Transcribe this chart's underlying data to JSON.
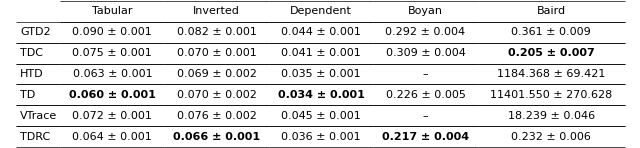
{
  "columns": [
    "Tabular",
    "Inverted",
    "Dependent",
    "Boyan",
    "Baird"
  ],
  "rows": [
    "GTD2",
    "TDC",
    "HTD",
    "TD",
    "VTrace",
    "TDRC"
  ],
  "cells": [
    [
      "0.090 ± 0.001",
      "0.082 ± 0.001",
      "0.044 ± 0.001",
      "0.292 ± 0.004",
      "0.361 ± 0.009"
    ],
    [
      "0.075 ± 0.001",
      "0.070 ± 0.001",
      "0.041 ± 0.001",
      "0.309 ± 0.004",
      "0.205 ± 0.007"
    ],
    [
      "0.063 ± 0.001",
      "0.069 ± 0.002",
      "0.035 ± 0.001",
      "–",
      "1184.368 ± 69.421"
    ],
    [
      "0.060 ± 0.001",
      "0.070 ± 0.002",
      "0.034 ± 0.001",
      "0.226 ± 0.005",
      "11401.550 ± 270.628"
    ],
    [
      "0.072 ± 0.001",
      "0.076 ± 0.002",
      "0.045 ± 0.001",
      "–",
      "18.239 ± 0.046"
    ],
    [
      "0.064 ± 0.001",
      "0.066 ± 0.001",
      "0.036 ± 0.001",
      "0.217 ± 0.004",
      "0.232 ± 0.006"
    ]
  ],
  "bold_cells": [
    [
      [
        3,
        0
      ],
      [
        3,
        2
      ]
    ],
    [
      [
        1,
        4
      ]
    ],
    [],
    [
      [
        3,
        0
      ],
      [
        3,
        2
      ]
    ],
    [],
    [
      [
        5,
        1
      ],
      [
        5,
        3
      ]
    ]
  ],
  "fig_width": 6.4,
  "fig_height": 1.48
}
